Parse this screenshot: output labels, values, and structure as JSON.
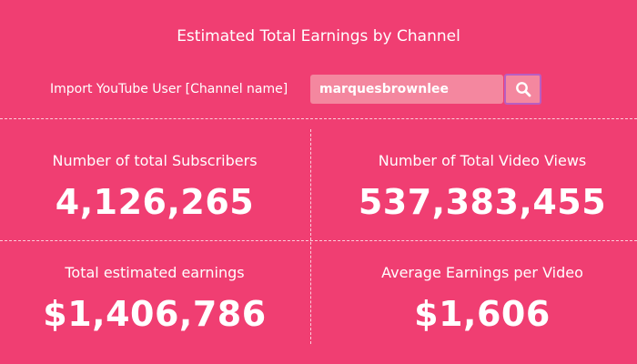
{
  "title": "Estimated Total Earnings by Channel",
  "import": {
    "label": "Import YouTube User [Channel name]",
    "value": "marquesbrownlee"
  },
  "stats": {
    "subscribers": {
      "label": "Number of total Subscribers",
      "value": "4,126,265"
    },
    "views": {
      "label": "Number of Total Video Views",
      "value": "537,383,455"
    },
    "earnings": {
      "label": "Total estimated earnings",
      "value": "$1,406,786"
    },
    "avg_earnings": {
      "label": "Average Earnings per Video",
      "value": "$1,606"
    }
  },
  "colors": {
    "background": "#f03e72",
    "input_bg": "#f4879f",
    "button_border": "#b85ec2",
    "text": "#ffffff"
  },
  "icons": {
    "search": "search-icon"
  }
}
